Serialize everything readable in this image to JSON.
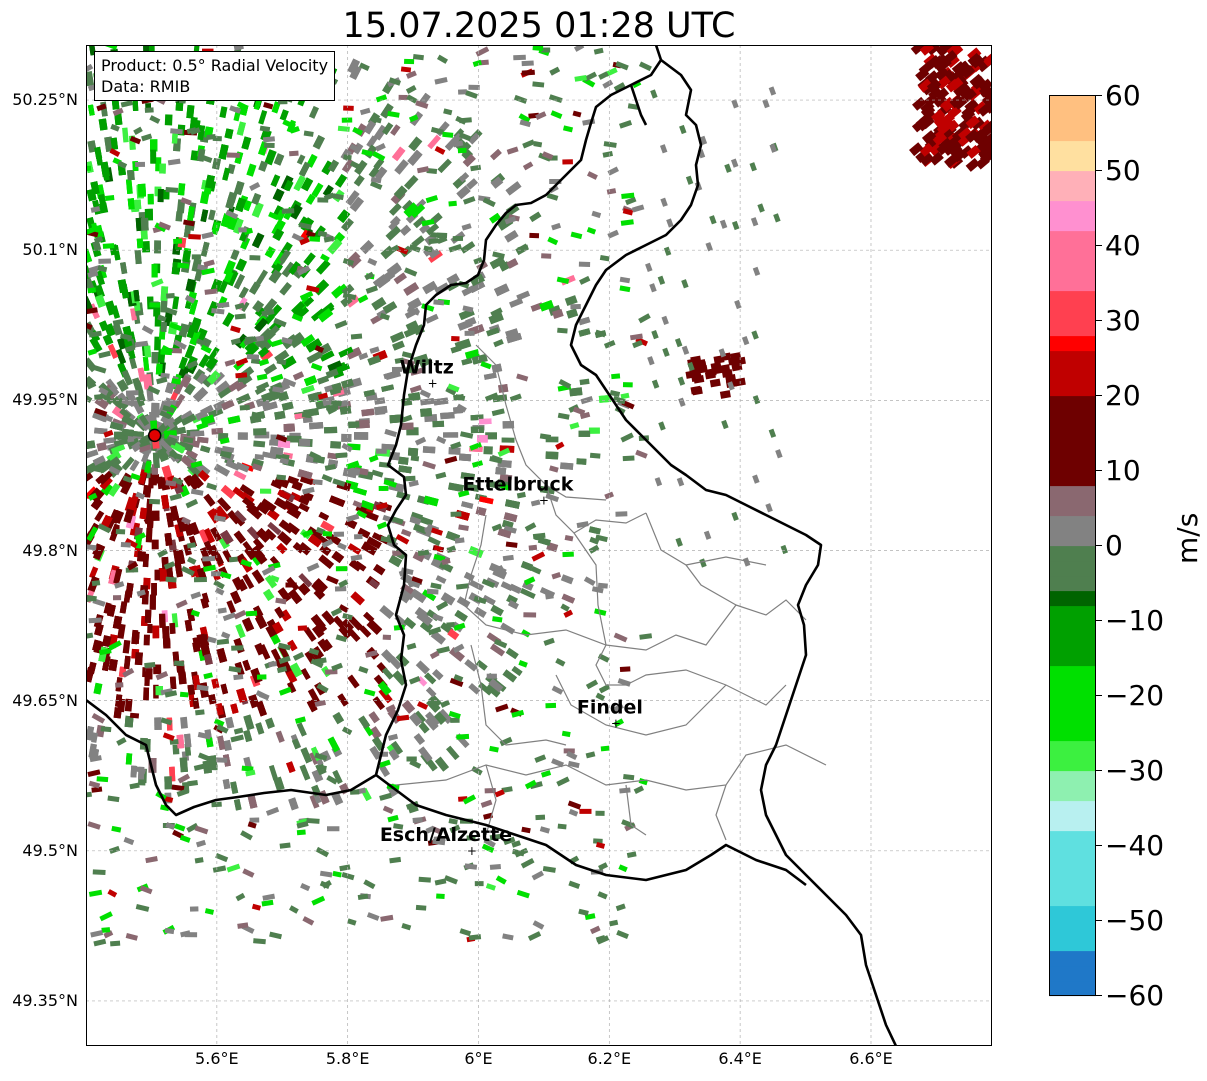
{
  "title": "15.07.2025 01:28 UTC",
  "info": {
    "product": "Product: 0.5° Radial Velocity",
    "source": "Data: RMIB"
  },
  "lat_ticks": [
    "50.25°N",
    "50.1°N",
    "49.95°N",
    "49.8°N",
    "49.65°N",
    "49.5°N",
    "49.35°N"
  ],
  "lon_ticks": [
    "5.6°E",
    "5.8°E",
    "6°E",
    "6.2°E",
    "6.4°E",
    "6.6°E"
  ],
  "cities": [
    {
      "name": "Wiltz",
      "lon": 5.93,
      "lat": 49.967
    },
    {
      "name": "Ettelbruck",
      "lon": 6.1,
      "lat": 49.85
    },
    {
      "name": "Findel",
      "lon": 6.21,
      "lat": 49.627
    },
    {
      "name": "Esch/Alzette",
      "lon": 5.99,
      "lat": 49.5
    }
  ],
  "radar_site": {
    "lon": 5.505,
    "lat": 49.915,
    "color": "#e00000"
  },
  "colorbar": {
    "unit": "m/s",
    "min": -60,
    "max": 60,
    "ticks": [
      "60",
      "50",
      "40",
      "30",
      "20",
      "10",
      "0",
      "−10",
      "−20",
      "−30",
      "−40",
      "−50",
      "−60"
    ],
    "stops": [
      {
        "v": -60,
        "c": "#1f78c8"
      },
      {
        "v": -53,
        "c": "#2ec8d8"
      },
      {
        "v": -47,
        "c": "#5fe0e0"
      },
      {
        "v": -38,
        "c": "#b8f0f0"
      },
      {
        "v": -34,
        "c": "#8ef0b0"
      },
      {
        "v": -30,
        "c": "#3cf040"
      },
      {
        "v": -25,
        "c": "#00e000"
      },
      {
        "v": -15,
        "c": "#00a000"
      },
      {
        "v": -7,
        "c": "#006400"
      },
      {
        "v": -6,
        "c": "#4f7f4f"
      },
      {
        "v": 0,
        "c": "#828282"
      },
      {
        "v": 4,
        "c": "#8a6870"
      },
      {
        "v": 8,
        "c": "#7a3a44"
      },
      {
        "v": 9,
        "c": "#6e0000"
      },
      {
        "v": 20,
        "c": "#c00000"
      },
      {
        "v": 27,
        "c": "#ff0000"
      },
      {
        "v": 28,
        "c": "#ff4050"
      },
      {
        "v": 35,
        "c": "#ff7098"
      },
      {
        "v": 42,
        "c": "#ff90d0"
      },
      {
        "v": 46,
        "c": "#ffb0b8"
      },
      {
        "v": 50,
        "c": "#ffe0a0"
      },
      {
        "v": 55,
        "c": "#ffc080"
      },
      {
        "v": 60,
        "c": "#ff9a50"
      }
    ]
  },
  "colors": {
    "border": "#000000",
    "cantons": "#808080",
    "grid": "#b0b0b0"
  }
}
